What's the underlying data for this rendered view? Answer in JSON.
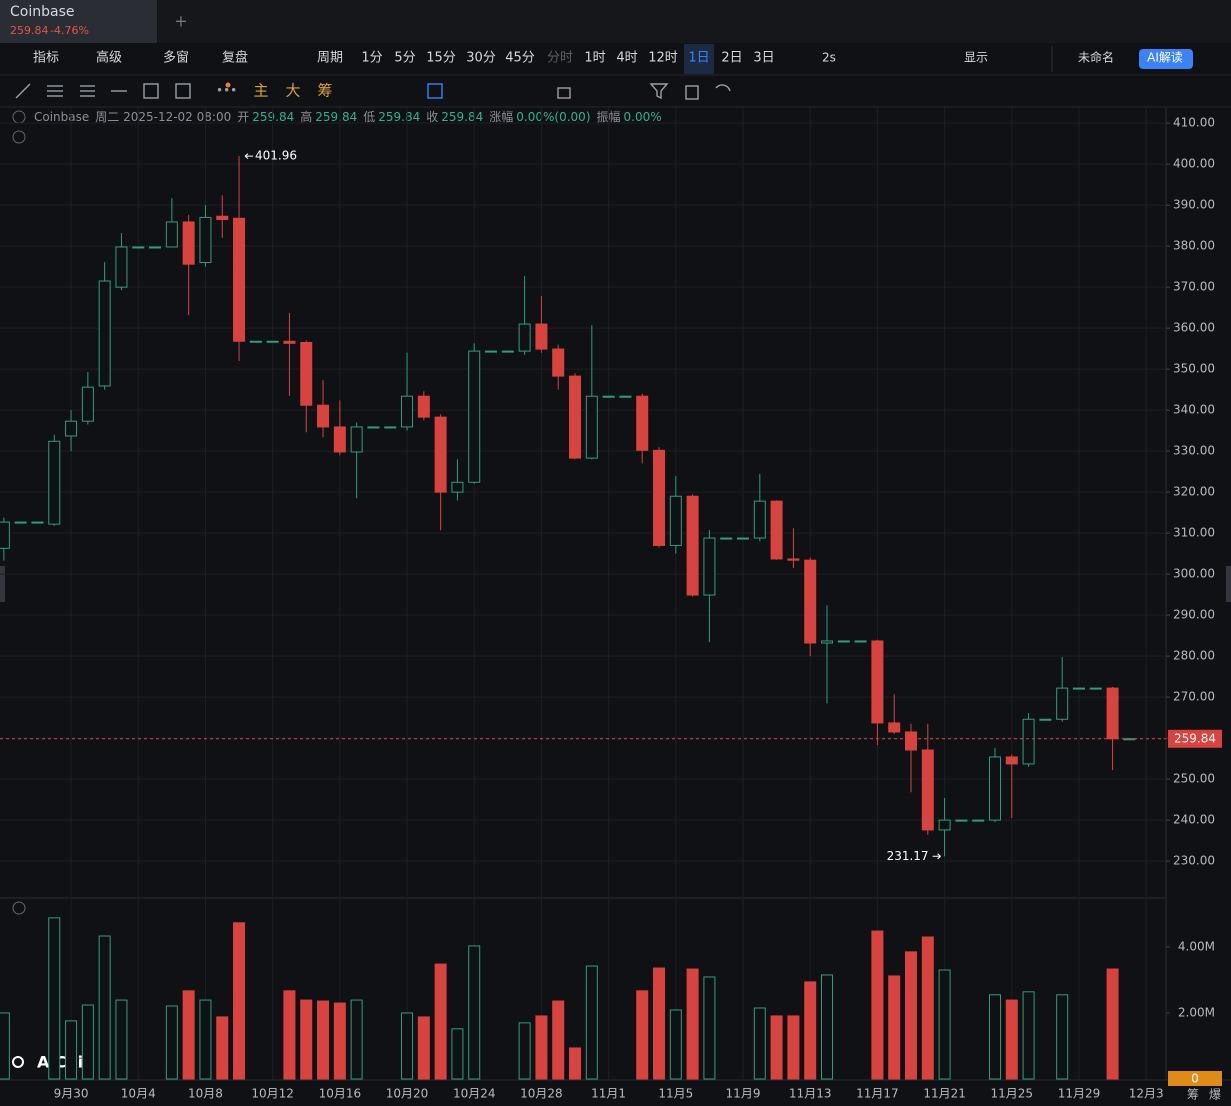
{
  "tab": {
    "title": "Coinbase",
    "price": "259.84",
    "change": "-4.76%",
    "add": "+"
  },
  "toolbar": {
    "left": [
      "指标",
      "高级",
      "多窗",
      "复盘",
      "周期"
    ],
    "periods": [
      "1分",
      "5分",
      "15分",
      "30分",
      "45分",
      "分时",
      "1时",
      "4时",
      "12时",
      "1日",
      "2日",
      "3日"
    ],
    "active_period_index": 9,
    "disabled_period_index": 5,
    "right": [
      "2s",
      "显示",
      "未命名",
      "AI解读"
    ]
  },
  "drawing_toolbar": [
    "主",
    "大",
    "筹"
  ],
  "info": {
    "symbol": "Coinbase",
    "datetime": "周二 2025-12-02 08:00",
    "fields": [
      {
        "label": "开",
        "value": "259.84"
      },
      {
        "label": "高",
        "value": "259.84"
      },
      {
        "label": "低",
        "value": "259.84"
      },
      {
        "label": "收",
        "value": "259.84"
      },
      {
        "label": "涨幅",
        "value": "0.00%(0.00)"
      },
      {
        "label": "振幅",
        "value": "0.00%"
      }
    ]
  },
  "logo": "AiCoin",
  "bottom_right": [
    "筹",
    "爆"
  ],
  "chart_data": {
    "type": "candlestick",
    "up_color": "#2f9e7d",
    "down_color": "#d9433f",
    "last_price_color": "#d9433f",
    "grid": true,
    "x": [
      -4,
      -3,
      -2,
      -1,
      0,
      1,
      2,
      3,
      4,
      5,
      6,
      7,
      8,
      9,
      10,
      11,
      12,
      13,
      14,
      15,
      16,
      17,
      18,
      19,
      20,
      21,
      22,
      23,
      24,
      25,
      26,
      27,
      28,
      29,
      30,
      31,
      32,
      33,
      34,
      35,
      36,
      37,
      38,
      39,
      40,
      41,
      42,
      43,
      44,
      45,
      46,
      47,
      48,
      49,
      50,
      51,
      52,
      53,
      54,
      55,
      56,
      57,
      58,
      59,
      60,
      61,
      62,
      63
    ],
    "open": [
      306.3,
      312.7,
      312.7,
      312.2,
      333.7,
      337.3,
      345.9,
      370,
      379.8,
      379.8,
      379.8,
      385.9,
      376,
      387.3,
      386.8,
      356.8,
      356.8,
      356.8,
      356.5,
      341.2,
      335.9,
      329.8,
      335.9,
      335.9,
      335.9,
      343.4,
      338.3,
      320,
      322.4,
      354.4,
      354.4,
      354.4,
      361,
      354.9,
      348.3,
      328.3,
      343.4,
      343.4,
      343.4,
      330.2,
      307,
      319,
      294.9,
      308.8,
      308.8,
      308.8,
      317.8,
      303.7,
      303.4,
      283.2,
      283.7,
      283.7,
      283.7,
      263.7,
      261.5,
      257.1,
      237.6,
      240,
      240,
      240,
      255.4,
      253.7,
      264.6,
      264.6,
      272.2,
      272.2,
      272.2,
      259.84
    ],
    "high": [
      313.8,
      312.7,
      312.7,
      334,
      340,
      349.3,
      376.1,
      383.2,
      379.8,
      379.8,
      391.7,
      387.6,
      390,
      392.4,
      401.96,
      356.8,
      356.8,
      363.7,
      357,
      347.3,
      342.4,
      337,
      335.9,
      335.9,
      354,
      344.6,
      339,
      328,
      356.3,
      354.4,
      354.4,
      372.7,
      367.8,
      356,
      349,
      360.7,
      343.4,
      343.4,
      344,
      331,
      323.9,
      319.5,
      310.7,
      308.8,
      308.8,
      324.4,
      318,
      311.2,
      304,
      292.4,
      283.7,
      283.7,
      284,
      270.7,
      263.5,
      263.5,
      245.4,
      240,
      240,
      257.6,
      256,
      266.1,
      264.6,
      279.8,
      272.2,
      272.2,
      272.5,
      259.84
    ],
    "low": [
      303.3,
      312.7,
      312.7,
      311.8,
      330,
      336.5,
      345,
      369.3,
      379.8,
      379.8,
      379.8,
      363.2,
      375,
      382,
      352,
      356.8,
      356.8,
      343.5,
      334.6,
      333.4,
      329,
      318.5,
      335.9,
      335.9,
      335,
      337.5,
      310.7,
      318,
      322,
      354.4,
      354.4,
      353.5,
      354,
      345,
      328,
      328,
      343.4,
      343.4,
      327,
      306.5,
      305,
      294.5,
      283.4,
      308.8,
      308.8,
      308,
      303.5,
      301.5,
      280,
      268.5,
      283.7,
      283.7,
      258.3,
      261,
      246.8,
      236.4,
      231.17,
      240,
      240,
      239.5,
      240.5,
      253,
      264.6,
      264,
      272.2,
      272.2,
      252.2,
      259.84
    ],
    "close": [
      312.7,
      312.7,
      312.7,
      332.4,
      337.3,
      345.6,
      371.5,
      379.8,
      379.8,
      379.8,
      385.9,
      375.6,
      387,
      386.5,
      356.8,
      356.8,
      356.8,
      356.3,
      341.2,
      335.9,
      329.8,
      335.9,
      335.9,
      335.9,
      343.4,
      338.3,
      320,
      322.4,
      354.4,
      354.4,
      354.4,
      361,
      354.9,
      348.3,
      328.3,
      343.4,
      343.4,
      343.4,
      330.2,
      307,
      319,
      294.9,
      308.8,
      308.8,
      308.8,
      317.8,
      303.7,
      303.4,
      283.2,
      283.7,
      283.7,
      283.7,
      263.7,
      261.5,
      257.1,
      237.6,
      240,
      240,
      240,
      255.4,
      253.7,
      264.6,
      264.6,
      272.2,
      272.2,
      272.2,
      259.84,
      259.84
    ],
    "volume": [
      2000000,
      0,
      0,
      4880000,
      1760000,
      2240000,
      4330000,
      2390000,
      0,
      0,
      2210000,
      2670000,
      2390000,
      1880000,
      4730000,
      0,
      0,
      2670000,
      2390000,
      2360000,
      2300000,
      2390000,
      0,
      0,
      2000000,
      1880000,
      3480000,
      1520000,
      4030000,
      0,
      0,
      1700000,
      1910000,
      2360000,
      940000,
      3420000,
      0,
      0,
      2670000,
      3360000,
      2090000,
      3330000,
      3090000,
      0,
      0,
      2150000,
      1910000,
      1910000,
      2940000,
      3150000,
      0,
      0,
      4480000,
      3120000,
      3850000,
      4300000,
      3300000,
      0,
      0,
      2550000,
      2390000,
      2640000,
      0,
      2550000,
      0,
      0,
      3330000,
      0
    ],
    "xlim": [
      -4.23,
      65.18
    ],
    "xticks": [
      {
        "value": 0,
        "label": "9月30"
      },
      {
        "value": 4,
        "label": "10月4"
      },
      {
        "value": 8,
        "label": "10月8"
      },
      {
        "value": 12,
        "label": "10月12"
      },
      {
        "value": 16,
        "label": "10月16"
      },
      {
        "value": 20,
        "label": "10月20"
      },
      {
        "value": 24,
        "label": "10月24"
      },
      {
        "value": 28,
        "label": "10月28"
      },
      {
        "value": 32,
        "label": "11月1"
      },
      {
        "value": 36,
        "label": "11月5"
      },
      {
        "value": 40,
        "label": "11月9"
      },
      {
        "value": 44,
        "label": "11月13"
      },
      {
        "value": 48,
        "label": "11月17"
      },
      {
        "value": 52,
        "label": "11月21"
      },
      {
        "value": 56,
        "label": "11月25"
      },
      {
        "value": 60,
        "label": "11月29"
      },
      {
        "value": 64,
        "label": "12月3"
      }
    ],
    "ylim": [
      221,
      413.7
    ],
    "yticks": [
      {
        "value": 230,
        "label": "230.00"
      },
      {
        "value": 240,
        "label": "240.00"
      },
      {
        "value": 250,
        "label": "250.00"
      },
      {
        "value": 260,
        "label": "260.00"
      },
      {
        "value": 270,
        "label": "270.00"
      },
      {
        "value": 280,
        "label": "280.00"
      },
      {
        "value": 290,
        "label": "290.00"
      },
      {
        "value": 300,
        "label": "300.00"
      },
      {
        "value": 310,
        "label": "310.00"
      },
      {
        "value": 320,
        "label": "320.00"
      },
      {
        "value": 330,
        "label": "330.00"
      },
      {
        "value": 340,
        "label": "340.00"
      },
      {
        "value": 350,
        "label": "350.00"
      },
      {
        "value": 360,
        "label": "360.00"
      },
      {
        "value": 370,
        "label": "370.00"
      },
      {
        "value": 380,
        "label": "380.00"
      },
      {
        "value": 390,
        "label": "390.00"
      },
      {
        "value": 400,
        "label": "400.00"
      },
      {
        "value": 410,
        "label": "410.00"
      }
    ],
    "volume_ylim": [
      0,
      5420000
    ],
    "volume_yticks": [
      0,
      {
        "value": 2000000,
        "label": "2.00M"
      },
      {
        "value": 4000000,
        "label": "4.00M"
      }
    ]
  }
}
